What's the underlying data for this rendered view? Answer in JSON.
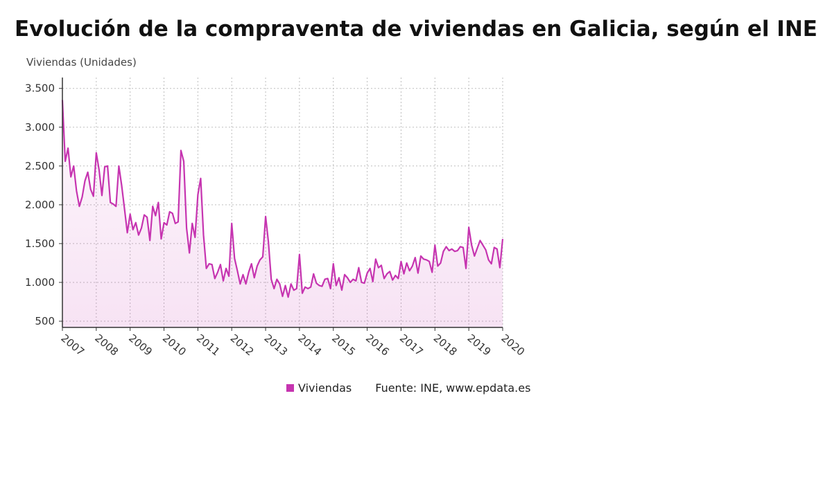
{
  "chart_data": {
    "type": "area",
    "title": "Evolución de la compraventa de viviendas en Galicia, según el INE",
    "ylabel": "Viviendas (Unidades)",
    "xlabel": "",
    "x_start": "2007-01",
    "x_end": "2020-01",
    "ylim": [
      420,
      3640
    ],
    "yticks": [
      500,
      1000,
      1500,
      2000,
      2500,
      3000,
      3500
    ],
    "ytick_labels": [
      "500",
      "1.000",
      "1.500",
      "2.000",
      "2.500",
      "3.000",
      "3.500"
    ],
    "xtick_labels": [
      "2007",
      "2008",
      "2009",
      "2010",
      "2011",
      "2012",
      "2013",
      "2014",
      "2015",
      "2016",
      "2017",
      "2018",
      "2019",
      "2020"
    ],
    "grid": true,
    "legend_position": "bottom",
    "series": [
      {
        "name": "Viviendas",
        "color": "#c634b0",
        "values": [
          3350,
          2560,
          2730,
          2360,
          2500,
          2180,
          1980,
          2100,
          2310,
          2420,
          2200,
          2110,
          2670,
          2450,
          2120,
          2490,
          2500,
          2030,
          2010,
          1980,
          2500,
          2250,
          1950,
          1640,
          1880,
          1680,
          1770,
          1610,
          1700,
          1870,
          1840,
          1540,
          1980,
          1860,
          2030,
          1560,
          1770,
          1740,
          1910,
          1890,
          1760,
          1780,
          2700,
          2560,
          1700,
          1380,
          1760,
          1580,
          2130,
          2340,
          1610,
          1180,
          1240,
          1230,
          1050,
          1130,
          1230,
          1020,
          1180,
          1080,
          1760,
          1310,
          1150,
          980,
          1100,
          980,
          1130,
          1240,
          1060,
          1210,
          1290,
          1330,
          1850,
          1520,
          1040,
          920,
          1040,
          980,
          820,
          960,
          810,
          980,
          900,
          920,
          1360,
          860,
          940,
          920,
          940,
          1110,
          990,
          960,
          950,
          1040,
          1050,
          920,
          1240,
          960,
          1060,
          900,
          1100,
          1060,
          1000,
          1040,
          1020,
          1190,
          1000,
          990,
          1120,
          1180,
          1010,
          1300,
          1190,
          1220,
          1050,
          1110,
          1140,
          1030,
          1090,
          1050,
          1270,
          1110,
          1250,
          1150,
          1210,
          1320,
          1120,
          1340,
          1300,
          1290,
          1270,
          1130,
          1480,
          1210,
          1250,
          1400,
          1460,
          1410,
          1430,
          1400,
          1410,
          1460,
          1450,
          1180,
          1710,
          1480,
          1340,
          1440,
          1540,
          1480,
          1420,
          1290,
          1240,
          1450,
          1430,
          1190,
          1560
        ]
      }
    ],
    "source": "Fuente: INE, www.epdata.es"
  }
}
